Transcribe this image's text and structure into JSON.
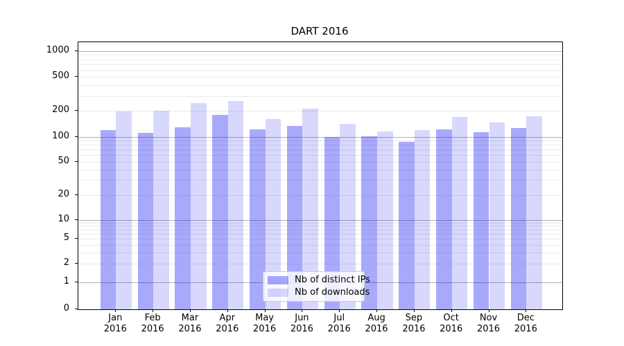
{
  "chart": {
    "title": "DART 2016"
  },
  "chart_data": {
    "type": "bar",
    "title": "DART 2016",
    "categories": [
      "Jan 2016",
      "Feb 2016",
      "Mar 2016",
      "Apr 2016",
      "May 2016",
      "Jun 2016",
      "Jul 2016",
      "Aug 2016",
      "Sep 2016",
      "Oct 2016",
      "Nov 2016",
      "Dec 2016"
    ],
    "series": [
      {
        "name": "Nb of distinct IPs",
        "key": "distinct-ips",
        "color": "rgba(10,10,245,0.35)",
        "values": [
          120,
          112,
          130,
          179,
          123,
          133,
          100,
          102,
          87,
          122,
          113,
          126
        ]
      },
      {
        "name": "Nb of downloads",
        "key": "downloads",
        "color": "rgba(10,10,245,0.16)",
        "values": [
          196,
          203,
          246,
          261,
          162,
          212,
          142,
          116,
          120,
          169,
          148,
          173
        ]
      }
    ],
    "xlabel": "",
    "ylabel": "",
    "yscale": "log-with-zero",
    "y_tick_labels": [
      "1000",
      "500",
      "200",
      "100",
      "50",
      "20",
      "10",
      "5",
      "2",
      "1",
      "0"
    ],
    "y_tick_values": [
      1000,
      500,
      200,
      100,
      50,
      20,
      10,
      5,
      2,
      1,
      0
    ],
    "ylim": [
      0,
      1270
    ],
    "grid": true,
    "legend_position": "lower center",
    "colors": {
      "major_gridline": "#b0b0b0",
      "minor_gridline": "#ebebeb",
      "axis": "#000000"
    }
  }
}
